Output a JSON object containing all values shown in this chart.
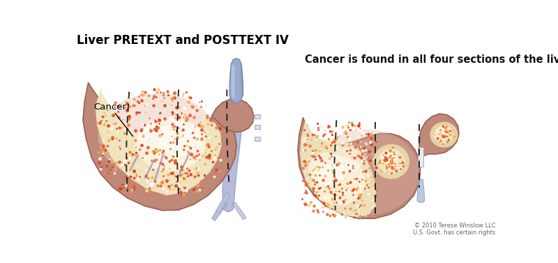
{
  "title": "Liver PRETEXT and POSTTEXT IV",
  "title_fontsize": 12,
  "annotation_text": "Cancer is found in all four sections of the liver.",
  "annotation_fontsize": 10.5,
  "cancer_label": "Cancer",
  "copyright_text": "© 2010 Terese Winslow LLC\nU.S. Govt. has certain rights",
  "background_color": "#ffffff",
  "liver_fill": "#c08878",
  "liver_edge": "#9a6655",
  "liver_shadow": "#a07060",
  "cancer_fill": "#f5e8b8",
  "cancer_bright": "#fffde8",
  "dashed_color": "#111111",
  "vessel_blue": "#8899bb",
  "vessel_light": "#aabbd8",
  "vein_color": "#9999cc",
  "spot_fill": "#f5e8c0",
  "spot_bright": "#fffce0"
}
